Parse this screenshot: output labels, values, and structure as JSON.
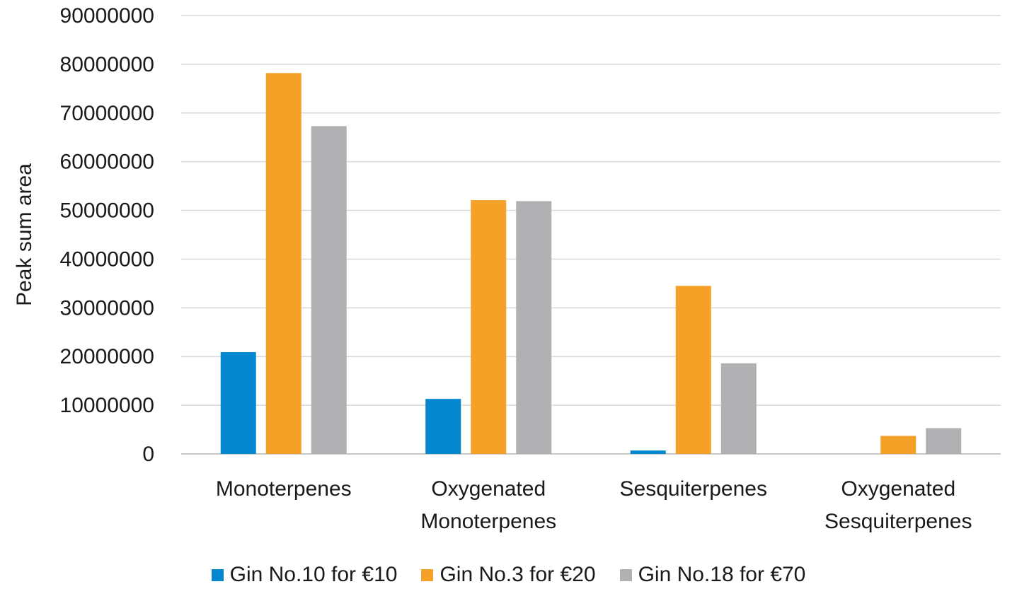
{
  "chart_data": {
    "type": "bar",
    "title": "",
    "xlabel": "",
    "ylabel": "Peak sum area",
    "ylim": [
      0,
      90000000
    ],
    "yticks": [
      0,
      10000000,
      20000000,
      30000000,
      40000000,
      50000000,
      60000000,
      70000000,
      80000000,
      90000000
    ],
    "ytick_labels": [
      "0",
      "10000000",
      "20000000",
      "30000000",
      "40000000",
      "50000000",
      "60000000",
      "70000000",
      "80000000",
      "90000000"
    ],
    "grid": true,
    "legend_position": "bottom",
    "categories": [
      [
        "Monoterpenes"
      ],
      [
        "Oxygenated",
        "Monoterpenes"
      ],
      [
        "Sesquiterpenes"
      ],
      [
        "Oxygenated",
        "Sesquiterpenes"
      ]
    ],
    "series": [
      {
        "name": "Gin No.10 for €10",
        "color": "#0487cf",
        "values": [
          20900000,
          11300000,
          700000,
          0
        ]
      },
      {
        "name": "Gin No.3 for €20",
        "color": "#f5a027",
        "values": [
          78200000,
          52100000,
          34500000,
          3700000
        ]
      },
      {
        "name": "Gin No.18 for €70",
        "color": "#b1b1b3",
        "values": [
          67300000,
          51900000,
          18600000,
          5300000
        ]
      }
    ]
  }
}
